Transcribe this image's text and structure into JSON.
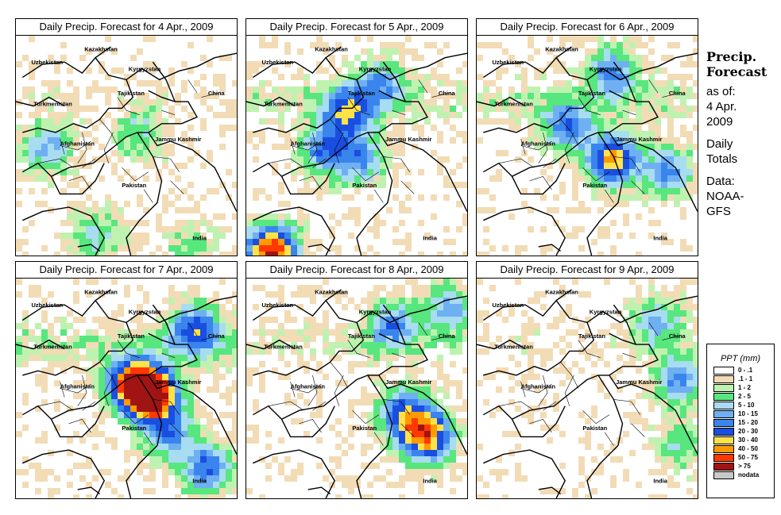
{
  "panels": [
    {
      "title": "Daily Precip. Forecast for  4 Apr., 2009",
      "seed": 11,
      "bias": 0.2,
      "hotspots": [
        [
          0.13,
          0.5,
          2.5
        ],
        [
          0.35,
          0.9,
          1.8
        ],
        [
          0.55,
          0.43,
          1.6
        ],
        [
          0.78,
          0.95,
          1.2
        ]
      ]
    },
    {
      "title": "Daily Precip. Forecast for  5 Apr., 2009",
      "seed": 23,
      "bias": 0.6,
      "hotspots": [
        [
          0.45,
          0.33,
          4.2
        ],
        [
          0.35,
          0.5,
          3.5
        ],
        [
          0.1,
          0.97,
          7.5
        ],
        [
          0.6,
          0.2,
          2.5
        ],
        [
          0.5,
          0.55,
          2.6
        ]
      ]
    },
    {
      "title": "Daily Precip. Forecast for  6 Apr., 2009",
      "seed": 37,
      "bias": 0.6,
      "hotspots": [
        [
          0.6,
          0.55,
          5.5
        ],
        [
          0.4,
          0.4,
          3.3
        ],
        [
          0.85,
          0.6,
          3.0
        ],
        [
          0.6,
          0.15,
          3.0
        ]
      ]
    },
    {
      "title": "Daily Precip. Forecast for  7 Apr., 2009",
      "seed": 51,
      "bias": 0.7,
      "hotspots": [
        [
          0.6,
          0.52,
          8.8
        ],
        [
          0.52,
          0.46,
          6.5
        ],
        [
          0.8,
          0.22,
          4.0
        ],
        [
          0.85,
          0.85,
          3.5
        ],
        [
          0.68,
          0.7,
          3.0
        ]
      ]
    },
    {
      "title": "Daily Precip. Forecast for  8 Apr., 2009",
      "seed": 67,
      "bias": 0.4,
      "hotspots": [
        [
          0.8,
          0.7,
          6.2
        ],
        [
          0.7,
          0.6,
          4.0
        ],
        [
          0.65,
          0.2,
          3.0
        ],
        [
          0.9,
          0.12,
          2.5
        ]
      ]
    },
    {
      "title": "Daily Precip. Forecast for  9 Apr., 2009",
      "seed": 83,
      "bias": 0.2,
      "hotspots": [
        [
          0.9,
          0.45,
          2.8
        ],
        [
          0.8,
          0.18,
          2.5
        ],
        [
          0.9,
          0.75,
          1.5
        ]
      ]
    }
  ],
  "place_labels": {
    "kazakhstan": "Kazakhstan",
    "uzbekistan": "Uzbekistan",
    "kyrgyzstan": "Kyrgyzstan",
    "tajikistan": "Tajikistan",
    "china": "China",
    "turkmenistan": "Turkmenistan",
    "afghanistan": "Afghanistan",
    "jammu_kashmir": "Jammu Kashmir",
    "pakistan": "Pakistan",
    "india": "India"
  },
  "sidebar": {
    "heading_line1": "Precip.",
    "heading_line2": "Forecast",
    "as_of_label": "as of:",
    "as_of_date": "4 Apr.",
    "as_of_year": "2009",
    "totals_line1": "Daily",
    "totals_line2": "Totals",
    "data_label": "Data:",
    "data_src_line1": "NOAA-",
    "data_src_line2": "GFS"
  },
  "legend": {
    "title": "PPT (mm)",
    "entries": [
      {
        "label": "0 - .1",
        "color": "#ffffff"
      },
      {
        "label": ".1 - 1",
        "color": "#f2dcb6"
      },
      {
        "label": "1 - 2",
        "color": "#bff2b0"
      },
      {
        "label": "2 - 5",
        "color": "#58e67e"
      },
      {
        "label": "5 - 10",
        "color": "#a8dcf0"
      },
      {
        "label": "10 - 15",
        "color": "#6eb0f2"
      },
      {
        "label": "15 - 20",
        "color": "#3a84ee"
      },
      {
        "label": "20 - 30",
        "color": "#1a4ee0"
      },
      {
        "label": "30 - 40",
        "color": "#ffe24a"
      },
      {
        "label": "40 - 50",
        "color": "#ff9a00"
      },
      {
        "label": "50 - 75",
        "color": "#ff3800"
      },
      {
        "label": "> 75",
        "color": "#a01414"
      },
      {
        "label": "nodata",
        "color": "#c8c8c8"
      }
    ]
  }
}
